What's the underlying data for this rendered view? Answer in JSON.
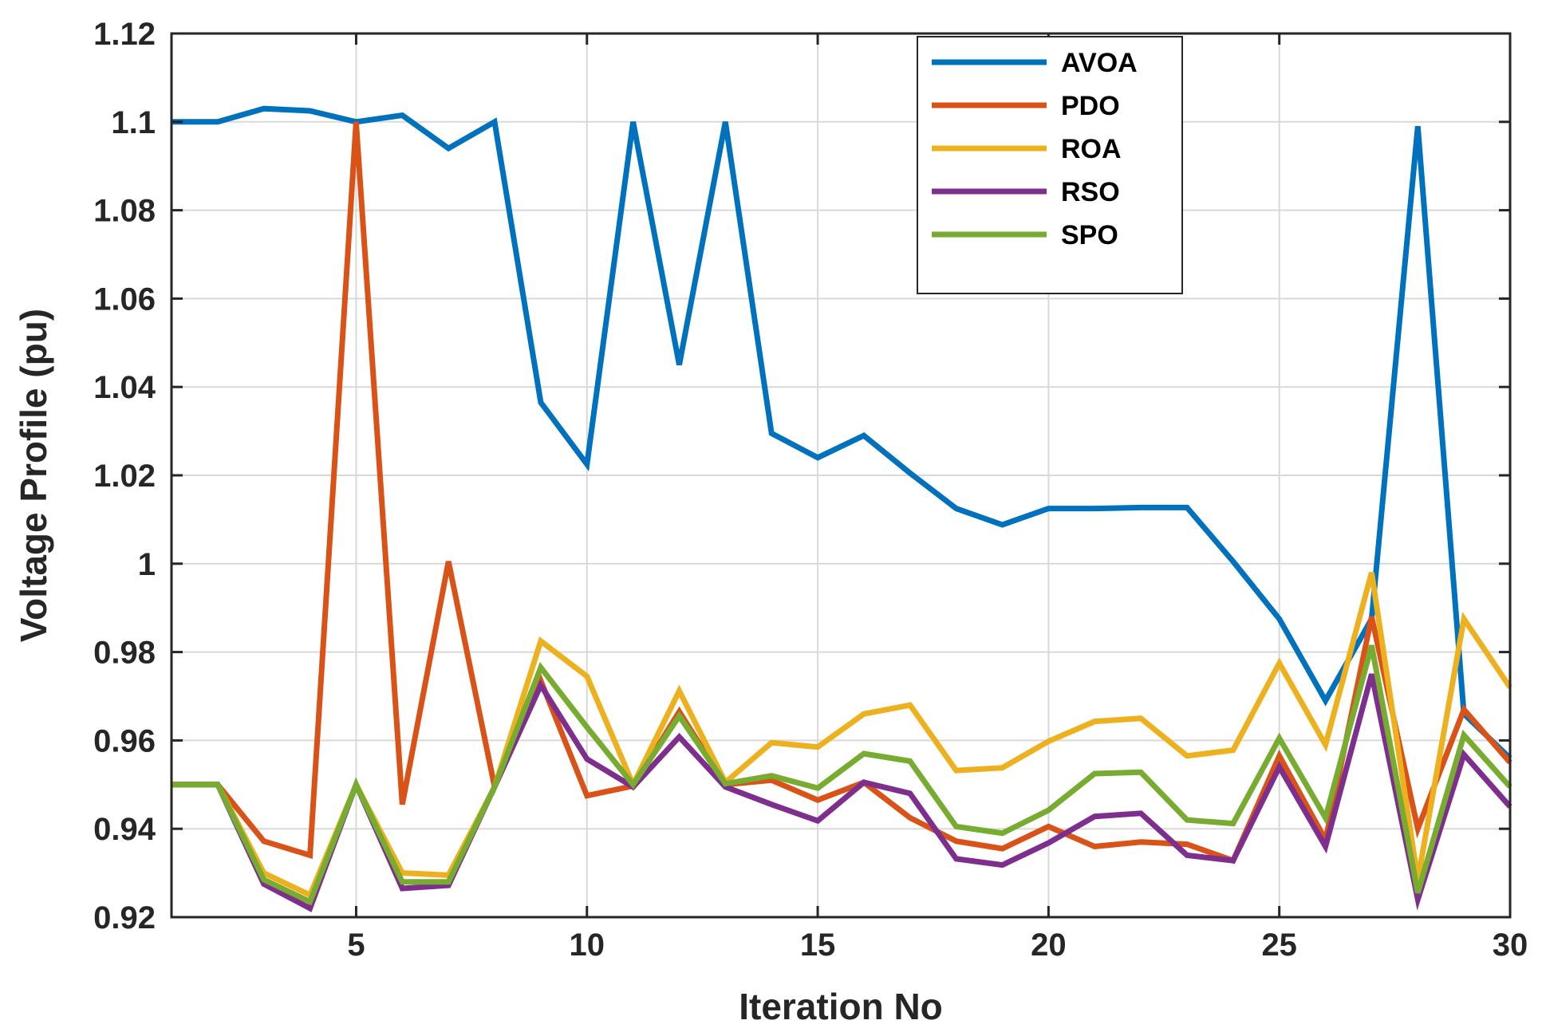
{
  "chart_data": {
    "type": "line",
    "title": "",
    "xlabel": "Iteration No",
    "ylabel": "Voltage Profile (pu)",
    "xlim": [
      1,
      30
    ],
    "ylim": [
      0.92,
      1.12
    ],
    "grid": true,
    "legend_position": "top-right",
    "x_ticks": [
      5,
      10,
      15,
      20,
      25,
      30
    ],
    "y_ticks": [
      0.92,
      0.94,
      0.96,
      0.98,
      1,
      1.02,
      1.04,
      1.06,
      1.08,
      1.1,
      1.12
    ],
    "x_tick_labels": [
      "5",
      "10",
      "15",
      "20",
      "25",
      "30"
    ],
    "y_tick_labels": [
      "0.92",
      "0.94",
      "0.96",
      "0.98",
      "1",
      "1.02",
      "1.04",
      "1.06",
      "1.08",
      "1.1",
      "1.12"
    ],
    "x": [
      1,
      2,
      3,
      4,
      5,
      6,
      7,
      8,
      9,
      10,
      11,
      12,
      13,
      14,
      15,
      16,
      17,
      18,
      19,
      20,
      21,
      22,
      23,
      24,
      25,
      26,
      27,
      28,
      29,
      30
    ],
    "series": [
      {
        "name": "AVOA",
        "color": "#0072BD",
        "values": [
          1.1,
          1.1,
          1.103,
          1.1025,
          1.1,
          1.1015,
          1.094,
          1.1,
          1.0365,
          1.0225,
          1.1,
          1.045,
          1.1,
          1.0295,
          1.024,
          1.029,
          1.0205,
          1.0125,
          1.0088,
          1.0125,
          1.0125,
          1.0127,
          1.0127,
          1.0005,
          0.9875,
          0.969,
          0.9875,
          1.099,
          0.966,
          0.956
        ]
      },
      {
        "name": "PDO",
        "color": "#D95319",
        "values": [
          0.95,
          0.95,
          0.9372,
          0.934,
          1.1,
          0.9455,
          1.0005,
          0.9495,
          0.9735,
          0.9475,
          0.9497,
          0.9665,
          0.95,
          0.951,
          0.9465,
          0.9505,
          0.9425,
          0.9372,
          0.9355,
          0.9405,
          0.936,
          0.937,
          0.9365,
          0.9328,
          0.9565,
          0.9375,
          0.988,
          0.94,
          0.967,
          0.955
        ]
      },
      {
        "name": "ROA",
        "color": "#EDB120",
        "values": [
          0.95,
          0.95,
          0.93,
          0.925,
          0.95,
          0.93,
          0.9295,
          0.9495,
          0.9825,
          0.9745,
          0.95,
          0.9712,
          0.9505,
          0.9595,
          0.9585,
          0.966,
          0.968,
          0.9532,
          0.9538,
          0.9598,
          0.9643,
          0.965,
          0.9565,
          0.9578,
          0.9775,
          0.959,
          0.998,
          0.9285,
          0.9875,
          0.972
        ]
      },
      {
        "name": "RSO",
        "color": "#7E2F8E",
        "values": [
          0.95,
          0.95,
          0.9275,
          0.922,
          0.95,
          0.9265,
          0.9272,
          0.9495,
          0.9725,
          0.9558,
          0.9495,
          0.9608,
          0.9495,
          0.9455,
          0.9418,
          0.9505,
          0.948,
          0.9332,
          0.9318,
          0.9368,
          0.9428,
          0.9435,
          0.934,
          0.9328,
          0.954,
          0.936,
          0.975,
          0.924,
          0.9568,
          0.945
        ]
      },
      {
        "name": "SPO",
        "color": "#77AC30",
        "values": [
          0.95,
          0.95,
          0.9285,
          0.9235,
          0.95,
          0.928,
          0.928,
          0.9495,
          0.9765,
          0.963,
          0.95,
          0.9655,
          0.9502,
          0.952,
          0.9492,
          0.957,
          0.9553,
          0.9405,
          0.939,
          0.9442,
          0.9525,
          0.9528,
          0.942,
          0.9412,
          0.9605,
          0.9425,
          0.9815,
          0.9255,
          0.9612,
          0.9495
        ]
      }
    ]
  }
}
